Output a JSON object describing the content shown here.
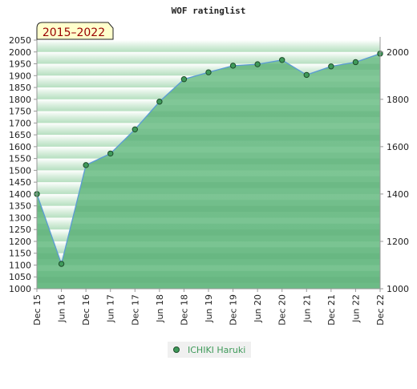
{
  "chart_data": {
    "type": "area",
    "title": "WOF ratinglist",
    "period_badge": "2015–2022",
    "categories": [
      "Dec 15",
      "Jun 16",
      "Dec 16",
      "Jun 17",
      "Dec 17",
      "Jun 18",
      "Dec 18",
      "Jun 19",
      "Dec 19",
      "Jun 20",
      "Dec 20",
      "Jun 21",
      "Dec 21",
      "Jun 22",
      "Dec 22"
    ],
    "series": [
      {
        "name": "ICHIKI Haruki",
        "values": [
          1400,
          1105,
          1522,
          1571,
          1673,
          1790,
          1885,
          1914,
          1942,
          1948,
          1966,
          1903,
          1939,
          1957,
          1993
        ]
      }
    ],
    "left_axis": {
      "ylim": [
        1000,
        2050
      ],
      "ticks": [
        1000,
        1050,
        1100,
        1150,
        1200,
        1250,
        1300,
        1350,
        1400,
        1450,
        1500,
        1550,
        1600,
        1650,
        1700,
        1750,
        1800,
        1850,
        1900,
        1950,
        2000,
        2050
      ]
    },
    "right_axis": {
      "ylim": [
        1000,
        2050
      ],
      "ticks": [
        1000,
        1200,
        1400,
        1600,
        1800,
        2000
      ]
    },
    "legend_position": "bottom-center",
    "grid": true,
    "colors": {
      "fill": "#6fbf8a",
      "line": "#5b9bd5",
      "marker": "#3f9a5a",
      "marker_edge": "#1e4d2b",
      "badge_bg": "#ffffcc",
      "badge_text": "#990000",
      "legend_text": "#3f9a5a"
    }
  }
}
